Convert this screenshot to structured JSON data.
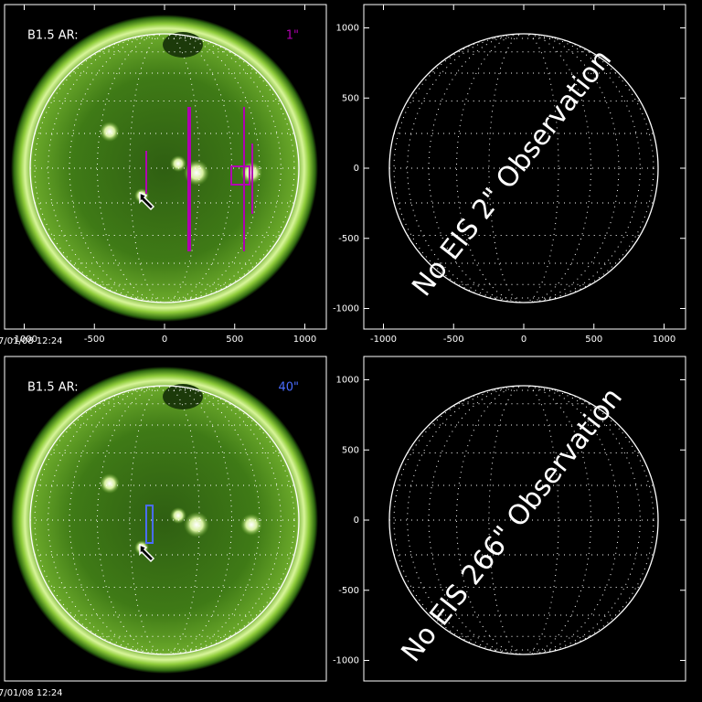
{
  "panels": [
    {
      "label": "B1.5 AR:",
      "slit": "1\"",
      "slit_color": "#b000b0",
      "timestamp": "7/01/08 12:24",
      "xticks": [
        -1000,
        -500,
        0,
        500,
        1000
      ]
    },
    {
      "message": "No EIS 2\" Observation",
      "xticks": [
        -1000,
        -500,
        0,
        500,
        1000
      ],
      "yticks": [
        1000,
        500,
        0,
        -500,
        -1000
      ]
    },
    {
      "label": "B1.5 AR:",
      "slit": "40\"",
      "slit_color": "#4a6cff",
      "timestamp": "7/01/08 12:24"
    },
    {
      "message": "No EIS 266\" Observation",
      "yticks": [
        1000,
        500,
        0,
        -500,
        -1000
      ]
    }
  ]
}
